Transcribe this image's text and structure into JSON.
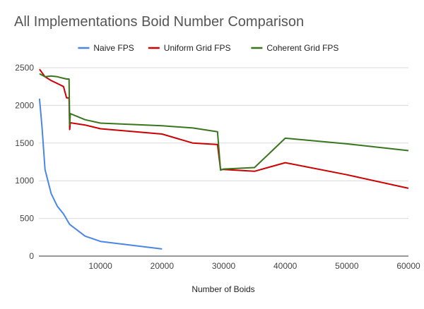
{
  "chart_data": {
    "type": "line",
    "title": "All Implementations Boid Number Comparison",
    "xlabel": "Number of Boids",
    "ylabel": "",
    "xlim": [
      0,
      60000
    ],
    "ylim": [
      0,
      2500
    ],
    "x_ticks": [
      10000,
      20000,
      30000,
      40000,
      50000,
      60000
    ],
    "y_ticks": [
      0,
      500,
      1000,
      1500,
      2000,
      2500
    ],
    "grid": true,
    "legend_position": "top",
    "series": [
      {
        "name": "Naive FPS",
        "color": "#4a86e8",
        "points": [
          [
            100,
            2090
          ],
          [
            500,
            1720
          ],
          [
            1000,
            1150
          ],
          [
            2000,
            830
          ],
          [
            3000,
            660
          ],
          [
            4000,
            560
          ],
          [
            5000,
            420
          ],
          [
            7500,
            265
          ],
          [
            10000,
            195
          ],
          [
            20000,
            95
          ]
        ]
      },
      {
        "name": "Uniform Grid FPS",
        "color": "#cc0000",
        "points": [
          [
            100,
            2480
          ],
          [
            1000,
            2380
          ],
          [
            2000,
            2330
          ],
          [
            3000,
            2290
          ],
          [
            4000,
            2250
          ],
          [
            4500,
            2100
          ],
          [
            4900,
            2100
          ],
          [
            5000,
            1680
          ],
          [
            5100,
            1770
          ],
          [
            7500,
            1740
          ],
          [
            10000,
            1690
          ],
          [
            20000,
            1620
          ],
          [
            25000,
            1500
          ],
          [
            29000,
            1480
          ],
          [
            29500,
            1150
          ],
          [
            30000,
            1150
          ],
          [
            35000,
            1125
          ],
          [
            40000,
            1240
          ],
          [
            50000,
            1080
          ],
          [
            60000,
            900
          ]
        ]
      },
      {
        "name": "Coherent Grid FPS",
        "color": "#38761d",
        "points": [
          [
            100,
            2420
          ],
          [
            1000,
            2380
          ],
          [
            2000,
            2390
          ],
          [
            3000,
            2380
          ],
          [
            4000,
            2360
          ],
          [
            4500,
            2350
          ],
          [
            4900,
            2350
          ],
          [
            5000,
            1740
          ],
          [
            5100,
            1890
          ],
          [
            7500,
            1810
          ],
          [
            10000,
            1765
          ],
          [
            20000,
            1730
          ],
          [
            25000,
            1700
          ],
          [
            29000,
            1650
          ],
          [
            29500,
            1140
          ],
          [
            30000,
            1155
          ],
          [
            35000,
            1175
          ],
          [
            40000,
            1565
          ],
          [
            50000,
            1490
          ],
          [
            60000,
            1400
          ]
        ]
      }
    ]
  }
}
